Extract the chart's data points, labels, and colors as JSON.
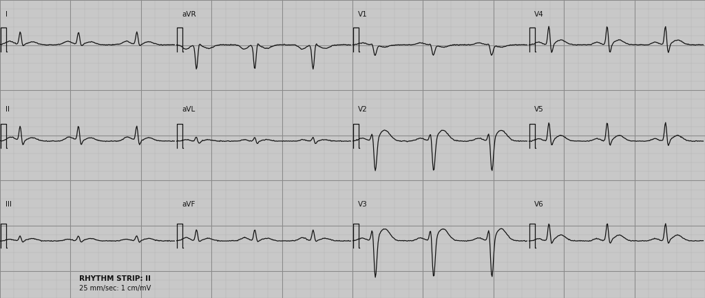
{
  "bg_color": "#d8d8d8",
  "grid_minor_color": "#b8b8b8",
  "grid_major_color": "#999999",
  "ecg_color": "#111111",
  "paper_color": "#d0d0d0",
  "labels": {
    "row1": [
      "I",
      "aVR",
      "V1",
      "V4"
    ],
    "row2": [
      "II",
      "aVL",
      "V2",
      "V5"
    ],
    "row3": [
      "III",
      "aVF",
      "V3",
      "V6"
    ]
  },
  "rhythm_strip_text": [
    "RHYTHM STRIP: II",
    "25 mm/sec: 1 cm/mV"
  ],
  "figsize": [
    10.24,
    4.33
  ],
  "dpi": 100
}
